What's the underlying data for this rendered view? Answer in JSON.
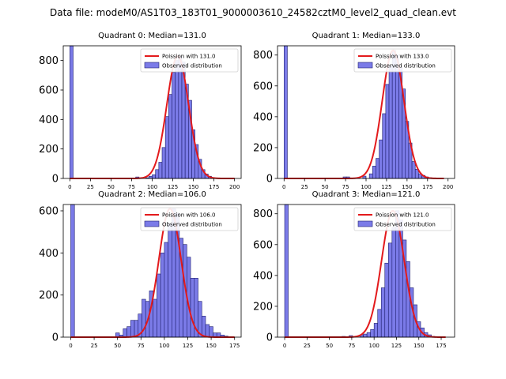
{
  "figure_title": "Data file: modeM0/AS1T03_183T01_9000003610_24582cztM0_level2_quad_clean.evt",
  "colors": {
    "bar_fill": "#7b7be8",
    "bar_edge": "#1f1f6e",
    "poisson_line": "#e31a1c"
  },
  "legend_labels": {
    "observed": "Observed distribution"
  },
  "chart_data": [
    {
      "type": "bar",
      "title": "Quadrant 0: Median=131.0",
      "median": 131.0,
      "poisson_label": "Poission with 131.0",
      "xlim": [
        -8,
        208
      ],
      "ylim": [
        0,
        900
      ],
      "xticks": [
        0,
        25,
        50,
        75,
        100,
        125,
        150,
        175,
        200
      ],
      "yticks": [
        0,
        200,
        400,
        600,
        800
      ],
      "bin_width": 4,
      "bins": [
        [
          0,
          900
        ],
        [
          80,
          10
        ],
        [
          92,
          5
        ],
        [
          96,
          15
        ],
        [
          100,
          25
        ],
        [
          104,
          60
        ],
        [
          108,
          110
        ],
        [
          112,
          210
        ],
        [
          116,
          420
        ],
        [
          120,
          570
        ],
        [
          124,
          720
        ],
        [
          128,
          800
        ],
        [
          132,
          830
        ],
        [
          136,
          790
        ],
        [
          140,
          640
        ],
        [
          144,
          530
        ],
        [
          148,
          330
        ],
        [
          152,
          230
        ],
        [
          156,
          130
        ],
        [
          160,
          60
        ],
        [
          164,
          30
        ],
        [
          168,
          15
        ],
        [
          172,
          5
        ]
      ],
      "x_range_poisson": [
        0,
        200
      ]
    },
    {
      "type": "bar",
      "title": "Quadrant 1: Median=133.0",
      "median": 133.0,
      "poisson_label": "Poission with 133.0",
      "xlim": [
        -8,
        208
      ],
      "ylim": [
        0,
        860
      ],
      "xticks": [
        0,
        25,
        50,
        75,
        100,
        125,
        150,
        175,
        200
      ],
      "yticks": [
        0,
        200,
        400,
        600,
        800
      ],
      "bin_width": 4,
      "bins": [
        [
          0,
          860
        ],
        [
          72,
          10
        ],
        [
          76,
          10
        ],
        [
          88,
          5
        ],
        [
          96,
          15
        ],
        [
          104,
          30
        ],
        [
          108,
          80
        ],
        [
          112,
          130
        ],
        [
          116,
          250
        ],
        [
          120,
          420
        ],
        [
          124,
          610
        ],
        [
          128,
          730
        ],
        [
          132,
          830
        ],
        [
          136,
          800
        ],
        [
          140,
          720
        ],
        [
          144,
          580
        ],
        [
          148,
          370
        ],
        [
          152,
          230
        ],
        [
          156,
          110
        ],
        [
          160,
          60
        ],
        [
          164,
          30
        ],
        [
          168,
          20
        ],
        [
          172,
          10
        ],
        [
          176,
          5
        ]
      ],
      "x_range_poisson": [
        0,
        195
      ]
    },
    {
      "type": "bar",
      "title": "Quadrant 2: Median=106.0",
      "median": 106.0,
      "poisson_label": "Poission with 106.0",
      "xlim": [
        -8,
        182
      ],
      "ylim": [
        0,
        630
      ],
      "xticks": [
        0,
        25,
        50,
        75,
        100,
        125,
        150,
        175
      ],
      "yticks": [
        0,
        200,
        400,
        600
      ],
      "bin_width": 4,
      "bins": [
        [
          0,
          630
        ],
        [
          48,
          20
        ],
        [
          52,
          10
        ],
        [
          56,
          40
        ],
        [
          60,
          50
        ],
        [
          64,
          80
        ],
        [
          68,
          80
        ],
        [
          72,
          110
        ],
        [
          76,
          180
        ],
        [
          80,
          170
        ],
        [
          84,
          220
        ],
        [
          88,
          180
        ],
        [
          92,
          300
        ],
        [
          96,
          400
        ],
        [
          100,
          450
        ],
        [
          104,
          540
        ],
        [
          108,
          610
        ],
        [
          112,
          590
        ],
        [
          116,
          470
        ],
        [
          120,
          440
        ],
        [
          124,
          380
        ],
        [
          128,
          280
        ],
        [
          132,
          280
        ],
        [
          136,
          170
        ],
        [
          140,
          100
        ],
        [
          144,
          60
        ],
        [
          148,
          50
        ],
        [
          152,
          20
        ],
        [
          156,
          20
        ],
        [
          160,
          10
        ],
        [
          164,
          5
        ]
      ],
      "x_range_poisson": [
        0,
        175
      ]
    },
    {
      "type": "bar",
      "title": "Quadrant 3: Median=121.0",
      "median": 121.0,
      "poisson_label": "Poission with 121.0",
      "xlim": [
        -8,
        190
      ],
      "ylim": [
        0,
        860
      ],
      "xticks": [
        0,
        25,
        50,
        75,
        100,
        125,
        150,
        175
      ],
      "yticks": [
        0,
        200,
        400,
        600,
        800
      ],
      "bin_width": 4,
      "bins": [
        [
          0,
          860
        ],
        [
          64,
          5
        ],
        [
          72,
          10
        ],
        [
          84,
          15
        ],
        [
          88,
          20
        ],
        [
          92,
          30
        ],
        [
          96,
          50
        ],
        [
          100,
          90
        ],
        [
          104,
          180
        ],
        [
          108,
          320
        ],
        [
          112,
          480
        ],
        [
          116,
          610
        ],
        [
          120,
          710
        ],
        [
          124,
          820
        ],
        [
          128,
          760
        ],
        [
          132,
          630
        ],
        [
          136,
          490
        ],
        [
          140,
          320
        ],
        [
          144,
          210
        ],
        [
          148,
          100
        ],
        [
          152,
          60
        ],
        [
          156,
          30
        ],
        [
          160,
          15
        ],
        [
          164,
          5
        ]
      ],
      "x_range_poisson": [
        0,
        180
      ]
    }
  ]
}
